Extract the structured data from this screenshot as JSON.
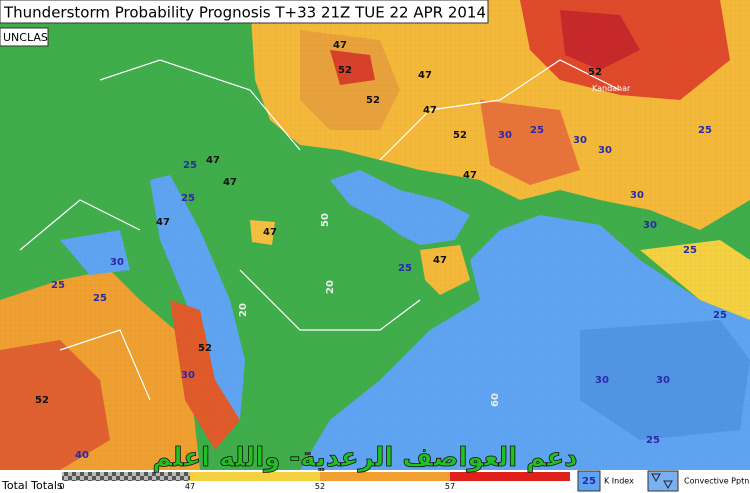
{
  "header": {
    "title": "Thunderstorm Probability Prognosis T+33 21Z TUE 22 APR 2014",
    "classification": "UNCLAS"
  },
  "map": {
    "labels": [
      "47",
      "52",
      "47",
      "52",
      "47",
      "52",
      "30",
      "25",
      "30",
      "30",
      "25",
      "30",
      "30",
      "25",
      "25",
      "47",
      "47",
      "25",
      "47",
      "47",
      "25",
      "47",
      "30",
      "25",
      "25",
      "52",
      "30",
      "52",
      "25",
      "30",
      "30",
      "25",
      "20",
      "20",
      "50",
      "60",
      "40",
      "47",
      "52"
    ],
    "place": "Kandahar"
  },
  "footer": {
    "scale_title": "Total Totals",
    "scale_ticks": [
      "0",
      "47",
      "52",
      "57"
    ],
    "legend": {
      "k_index_value": "25",
      "k_index_label": "K Index",
      "convective_label": "Convective Pptn"
    },
    "caption": "دعم العواصف الرعدية- والله اعلم"
  }
}
